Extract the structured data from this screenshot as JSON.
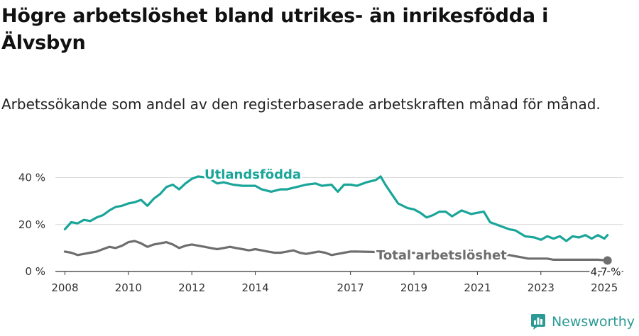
{
  "title": "Högre arbetslöshet bland utrikes- än inrikesfödda i Älvsbyn",
  "subtitle": "Arbetssökande som andel av den registerbaserade arbetskraften månad för månad.",
  "brand": {
    "name": "Newsworthy",
    "icon": "newsworthy-logo-icon"
  },
  "colors": {
    "abroad": "#1aa599",
    "total": "#6e6e6e",
    "grid": "#d9d9d9",
    "brand": "#2b9a94"
  },
  "chart_data": {
    "type": "line",
    "title": "Högre arbetslöshet bland utrikes- än inrikesfödda i Älvsbyn",
    "xlabel": "",
    "ylabel": "",
    "xlim": [
      2007.7,
      2025.6
    ],
    "ylim": [
      0,
      45
    ],
    "grid": "horizontal",
    "x_ticks": [
      2008,
      2010,
      2012,
      2014,
      2017,
      2019,
      2021,
      2023,
      2025
    ],
    "x_tick_labels": [
      "2008",
      "2010",
      "2012",
      "2014",
      "2017",
      "2019",
      "2021",
      "2023",
      "2025"
    ],
    "y_ticks": [
      0,
      20,
      40
    ],
    "y_tick_labels": [
      "0 %",
      "20 %",
      "40 %"
    ],
    "series": [
      {
        "name": "Utlandsfödda",
        "color": "#1aa599",
        "points": [
          [
            2008.0,
            18
          ],
          [
            2008.2,
            21
          ],
          [
            2008.4,
            20.5
          ],
          [
            2008.6,
            22
          ],
          [
            2008.8,
            21.5
          ],
          [
            2009.0,
            23
          ],
          [
            2009.2,
            24
          ],
          [
            2009.4,
            26
          ],
          [
            2009.6,
            27.5
          ],
          [
            2009.8,
            28
          ],
          [
            2010.0,
            29
          ],
          [
            2010.2,
            29.5
          ],
          [
            2010.4,
            30.5
          ],
          [
            2010.6,
            28
          ],
          [
            2010.8,
            31
          ],
          [
            2011.0,
            33
          ],
          [
            2011.2,
            36
          ],
          [
            2011.4,
            37
          ],
          [
            2011.6,
            35
          ],
          [
            2011.8,
            37.5
          ],
          [
            2012.0,
            39.5
          ],
          [
            2012.2,
            40.5
          ],
          [
            2012.5,
            40
          ],
          [
            2012.8,
            37.5
          ],
          [
            2013.0,
            38
          ],
          [
            2013.3,
            37
          ],
          [
            2013.6,
            36.5
          ],
          [
            2014.0,
            36.5
          ],
          [
            2014.2,
            35
          ],
          [
            2014.5,
            34
          ],
          [
            2014.8,
            35
          ],
          [
            2015.0,
            35
          ],
          [
            2015.3,
            36
          ],
          [
            2015.6,
            37
          ],
          [
            2015.9,
            37.5
          ],
          [
            2016.1,
            36.5
          ],
          [
            2016.4,
            37
          ],
          [
            2016.6,
            34
          ],
          [
            2016.8,
            37
          ],
          [
            2017.0,
            37
          ],
          [
            2017.2,
            36.5
          ],
          [
            2017.5,
            38
          ],
          [
            2017.8,
            39
          ],
          [
            2017.95,
            40.5
          ],
          [
            2018.1,
            37
          ],
          [
            2018.3,
            33
          ],
          [
            2018.5,
            29
          ],
          [
            2018.8,
            27
          ],
          [
            2019.0,
            26.5
          ],
          [
            2019.2,
            25
          ],
          [
            2019.4,
            23
          ],
          [
            2019.6,
            24
          ],
          [
            2019.8,
            25.5
          ],
          [
            2020.0,
            25.5
          ],
          [
            2020.2,
            23.5
          ],
          [
            2020.5,
            26
          ],
          [
            2020.8,
            24.5
          ],
          [
            2021.0,
            25
          ],
          [
            2021.2,
            25.5
          ],
          [
            2021.4,
            21
          ],
          [
            2021.6,
            20
          ],
          [
            2021.8,
            19
          ],
          [
            2022.0,
            18
          ],
          [
            2022.2,
            17.5
          ],
          [
            2022.5,
            15
          ],
          [
            2022.8,
            14.5
          ],
          [
            2023.0,
            13.5
          ],
          [
            2023.2,
            15
          ],
          [
            2023.4,
            14
          ],
          [
            2023.6,
            15
          ],
          [
            2023.8,
            13
          ],
          [
            2024.0,
            15
          ],
          [
            2024.2,
            14.5
          ],
          [
            2024.4,
            15.5
          ],
          [
            2024.6,
            14
          ],
          [
            2024.8,
            15.5
          ],
          [
            2025.0,
            14
          ],
          [
            2025.1,
            15.5
          ]
        ]
      },
      {
        "name": "Total arbetslöshet",
        "color": "#6e6e6e",
        "points": [
          [
            2008.0,
            8.5
          ],
          [
            2008.2,
            8
          ],
          [
            2008.4,
            7
          ],
          [
            2008.6,
            7.5
          ],
          [
            2008.8,
            8
          ],
          [
            2009.0,
            8.5
          ],
          [
            2009.2,
            9.5
          ],
          [
            2009.4,
            10.5
          ],
          [
            2009.6,
            10
          ],
          [
            2009.8,
            11
          ],
          [
            2010.0,
            12.5
          ],
          [
            2010.2,
            13
          ],
          [
            2010.4,
            12
          ],
          [
            2010.6,
            10.5
          ],
          [
            2010.8,
            11.5
          ],
          [
            2011.0,
            12
          ],
          [
            2011.2,
            12.5
          ],
          [
            2011.4,
            11.5
          ],
          [
            2011.6,
            10
          ],
          [
            2011.8,
            11
          ],
          [
            2012.0,
            11.5
          ],
          [
            2012.2,
            11
          ],
          [
            2012.4,
            10.5
          ],
          [
            2012.6,
            10
          ],
          [
            2012.8,
            9.5
          ],
          [
            2013.0,
            10
          ],
          [
            2013.2,
            10.5
          ],
          [
            2013.4,
            10
          ],
          [
            2013.6,
            9.5
          ],
          [
            2013.8,
            9
          ],
          [
            2014.0,
            9.5
          ],
          [
            2014.2,
            9
          ],
          [
            2014.4,
            8.5
          ],
          [
            2014.6,
            8
          ],
          [
            2014.8,
            8
          ],
          [
            2015.0,
            8.5
          ],
          [
            2015.2,
            9
          ],
          [
            2015.4,
            8
          ],
          [
            2015.6,
            7.5
          ],
          [
            2015.8,
            8
          ],
          [
            2016.0,
            8.5
          ],
          [
            2016.2,
            8
          ],
          [
            2016.4,
            7
          ],
          [
            2016.6,
            7.5
          ],
          [
            2016.8,
            8
          ],
          [
            2017.0,
            8.5
          ],
          [
            2017.2,
            8.5
          ],
          [
            2022.0,
            7
          ],
          [
            2022.2,
            6.5
          ],
          [
            2022.4,
            6
          ],
          [
            2022.6,
            5.5
          ],
          [
            2022.8,
            5.5
          ],
          [
            2023.0,
            5.5
          ],
          [
            2023.2,
            5.5
          ],
          [
            2023.4,
            5
          ],
          [
            2023.6,
            5
          ],
          [
            2023.8,
            5
          ],
          [
            2024.0,
            5
          ],
          [
            2024.2,
            5
          ],
          [
            2024.4,
            5
          ],
          [
            2024.6,
            5
          ],
          [
            2024.8,
            5
          ],
          [
            2025.0,
            4.8
          ],
          [
            2025.1,
            4.7
          ]
        ]
      }
    ],
    "annotations": [
      {
        "text": "Utlandsfödda",
        "series": "Utlandsfödda"
      },
      {
        "text": "Total arbetslöshet",
        "series": "Total arbetslöshet"
      },
      {
        "text": "4,7 %",
        "series": "Total arbetslöshet",
        "value": 4.7
      }
    ]
  }
}
